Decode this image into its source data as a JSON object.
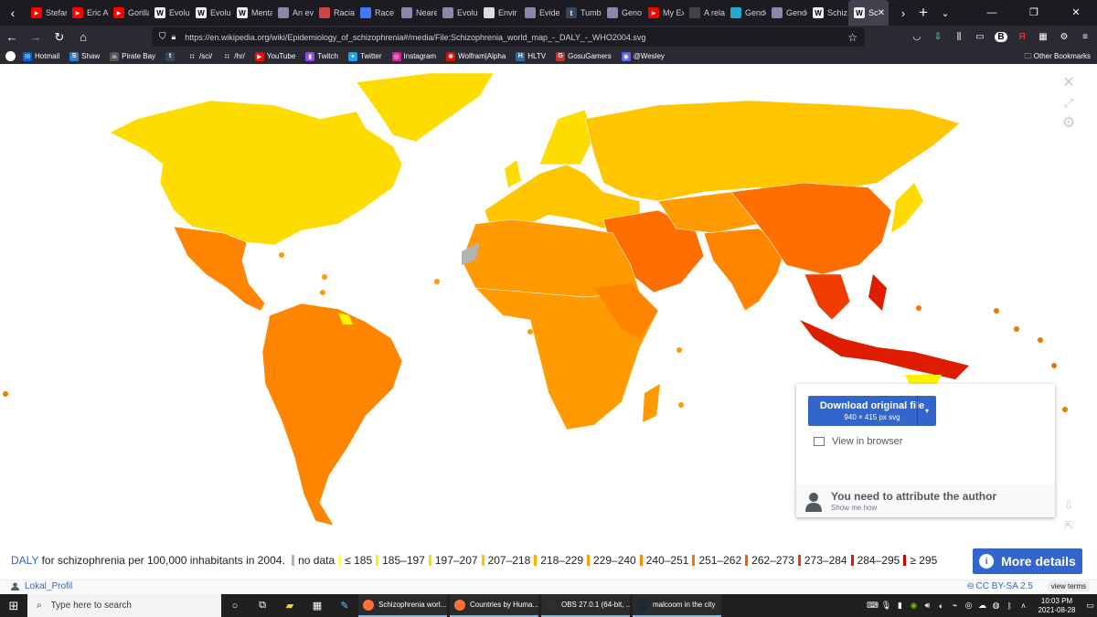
{
  "browser": {
    "tabs": [
      {
        "label": "Stefan",
        "icon": "youtube-icon",
        "color": "#ff0000"
      },
      {
        "label": "Eric A",
        "icon": "youtube-icon",
        "color": "#ff0000"
      },
      {
        "label": "Gorilla",
        "icon": "youtube-icon",
        "color": "#ff0000"
      },
      {
        "label": "Evolu",
        "icon": "wikipedia-icon",
        "color": "#eeeeee"
      },
      {
        "label": "Evolu",
        "icon": "wikipedia-icon",
        "color": "#eeeeee"
      },
      {
        "label": "Menta",
        "icon": "wikipedia-icon",
        "color": "#eeeeee"
      },
      {
        "label": "An ev",
        "icon": "page-icon",
        "color": "#8888aa"
      },
      {
        "label": "Racia",
        "icon": "page-icon",
        "color": "#cc4444"
      },
      {
        "label": "Race",
        "icon": "page-icon",
        "color": "#4477ff"
      },
      {
        "label": "Neare",
        "icon": "page-icon",
        "color": "#8888aa"
      },
      {
        "label": "Evolu",
        "icon": "page-icon",
        "color": "#8888aa"
      },
      {
        "label": "Envir",
        "icon": "page-icon",
        "color": "#dddddd"
      },
      {
        "label": "Evide",
        "icon": "page-icon",
        "color": "#8888aa"
      },
      {
        "label": "Tumb",
        "icon": "tumblr-icon",
        "color": "#36465d"
      },
      {
        "label": "Geno",
        "icon": "page-icon",
        "color": "#8888aa"
      },
      {
        "label": "My Ex",
        "icon": "youtube-icon",
        "color": "#ff0000"
      },
      {
        "label": "A rela",
        "icon": "page-icon",
        "color": "#444444"
      },
      {
        "label": "Gende",
        "icon": "page-icon",
        "color": "#22aacc"
      },
      {
        "label": "Gende",
        "icon": "page-icon",
        "color": "#8888aa"
      },
      {
        "label": "Schiz",
        "icon": "wikipedia-icon",
        "color": "#eeeeee"
      },
      {
        "label": "Sc",
        "icon": "wikipedia-icon",
        "color": "#eeeeee",
        "active": true
      }
    ],
    "url": "https://en.wikipedia.org/wiki/Epidemiology_of_schizophrenia#/media/File:Schizophrenia_world_map_-_DALY_-_WHO2004.svg",
    "bookmarks": [
      {
        "label": "Hotmail",
        "color": "#0a64d6",
        "glyph": "✉"
      },
      {
        "label": "Shaw",
        "color": "#2a7fd4",
        "glyph": "S"
      },
      {
        "label": "Pirate Bay",
        "color": "#555555",
        "glyph": "☠"
      },
      {
        "label": "",
        "color": "#36465d",
        "glyph": "t"
      },
      {
        "label": "/sci/",
        "color": "#2b2a33",
        "glyph": "∷"
      },
      {
        "label": "/hr/",
        "color": "#2b2a33",
        "glyph": "∷"
      },
      {
        "label": "YouTube",
        "color": "#ff0000",
        "glyph": "▶"
      },
      {
        "label": "Twitch",
        "color": "#9146ff",
        "glyph": "▮"
      },
      {
        "label": "Twitter",
        "color": "#1da1f2",
        "glyph": "✦"
      },
      {
        "label": "Instagram",
        "color": "#d6249f",
        "glyph": "◎"
      },
      {
        "label": "Wolfram|Alpha",
        "color": "#dd1100",
        "glyph": "✺"
      },
      {
        "label": "HLTV",
        "color": "#2d6da3",
        "glyph": "H"
      },
      {
        "label": "GosuGamers",
        "color": "#c0392b",
        "glyph": "G"
      },
      {
        "label": "@Wesley",
        "color": "#5865f2",
        "glyph": "◉"
      }
    ],
    "other_bookmarks": "Other Bookmarks"
  },
  "viewer": {
    "download_button": "Download original file",
    "download_sub": "940 × 415 px svg",
    "view_in_browser": "View in browser",
    "attribution_title": "You need to attribute the author",
    "attribution_sub": "Show me how",
    "caption_link": "DALY",
    "caption_text": "for schizophrenia per 100,000 inhabitants in 2004.",
    "legend": [
      {
        "label": "no data",
        "color": "#b3b3b3"
      },
      {
        "label": "≤ 185",
        "color": "#ffff66"
      },
      {
        "label": "185–197",
        "color": "#fff200"
      },
      {
        "label": "197–207",
        "color": "#ffdc00"
      },
      {
        "label": "207–218",
        "color": "#ffc600"
      },
      {
        "label": "218–229",
        "color": "#ffb000"
      },
      {
        "label": "229–240",
        "color": "#ff9a00"
      },
      {
        "label": "240–251",
        "color": "#ff8400"
      },
      {
        "label": "251–262",
        "color": "#ff6e00"
      },
      {
        "label": "262–273",
        "color": "#ff5800"
      },
      {
        "label": "273–284",
        "color": "#f03c00"
      },
      {
        "label": "284–295",
        "color": "#dd1c00"
      },
      {
        "label": "≥ 295",
        "color": "#cc0000"
      }
    ],
    "more_details": "More details",
    "author": "Lokal_Profil",
    "license": "CC BY-SA 2.5",
    "view_terms": "view terms"
  },
  "taskbar": {
    "search_placeholder": "Type here to search",
    "tasks": [
      {
        "label": "Schizophrenia worl...",
        "color": "#ff7139"
      },
      {
        "label": "Countries by Huma...",
        "color": "#ff7139"
      },
      {
        "label": "OBS 27.0.1 (64-bit, ...",
        "color": "#302e31"
      },
      {
        "label": "malcoom in the city",
        "color": "#1b2838"
      }
    ],
    "time": "10:03 PM",
    "date": "2021-08-28"
  }
}
